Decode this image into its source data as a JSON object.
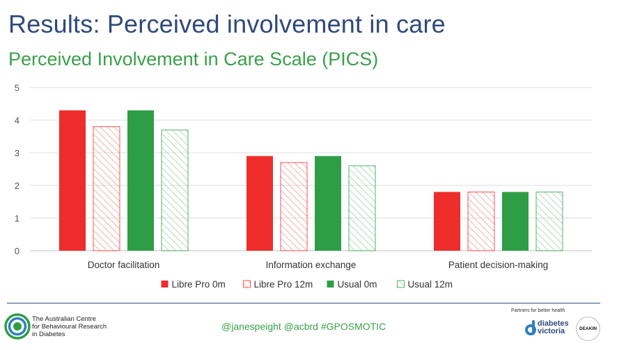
{
  "header": {
    "title": "Results: Perceived involvement in care",
    "subtitle": "Perceived Involvement in Care Scale (PICS)"
  },
  "chart_data": {
    "type": "bar",
    "categories": [
      "Doctor facilitation",
      "Information exchange",
      "Patient decision-making"
    ],
    "series": [
      {
        "name": "Libre Pro 0m",
        "values": [
          4.3,
          2.9,
          1.8
        ],
        "color": "#ee2c2c",
        "fill": "solid"
      },
      {
        "name": "Libre Pro 12m",
        "values": [
          3.8,
          2.7,
          1.8
        ],
        "color": "#ee2c2c",
        "fill": "hatched"
      },
      {
        "name": "Usual 0m",
        "values": [
          4.3,
          2.9,
          1.8
        ],
        "color": "#2e9e46",
        "fill": "solid"
      },
      {
        "name": "Usual 12m",
        "values": [
          3.7,
          2.6,
          1.8
        ],
        "color": "#2e9e46",
        "fill": "hatched"
      }
    ],
    "ylim": [
      0,
      5
    ],
    "yticks": [
      "0",
      "1",
      "2",
      "3",
      "4",
      "5"
    ],
    "grid": true,
    "legend": "bottom"
  },
  "footer": {
    "org_name": "The Australian Centre\nfor Behavioural Research\nin Diabetes",
    "hashtags": "@janespeight  @acbrd  #GPOSMOTIC",
    "partners_label": "Partners for better health",
    "partner_diabetes_victoria": "diabetes\nvictoria",
    "partner_deakin": "DEAKIN",
    "colors": {
      "navy": "#2f4a7a",
      "green": "#3aa04a"
    }
  }
}
